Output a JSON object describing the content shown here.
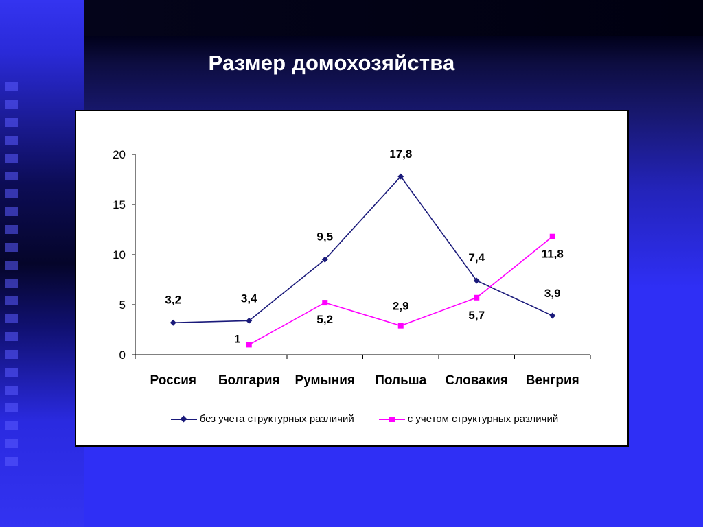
{
  "slide": {
    "title": "Размер домохозяйства"
  },
  "chart_data": {
    "type": "line",
    "categories": [
      "Россия",
      "Болгария",
      "Румыния",
      "Польша",
      "Словакия",
      "Венгрия"
    ],
    "series": [
      {
        "name": "без учета структурных различий",
        "values": [
          3.2,
          3.4,
          9.5,
          17.8,
          7.4,
          3.9
        ],
        "labels": [
          "3,2",
          "3,4",
          "9,5",
          "17,8",
          "7,4",
          "3,9"
        ],
        "color": "#1a1a7a",
        "marker": "diamond"
      },
      {
        "name": "с учетом структурных различий",
        "values": [
          null,
          1,
          5.2,
          2.9,
          5.7,
          11.8
        ],
        "labels": [
          null,
          "1",
          "5,2",
          "2,9",
          "5,7",
          "11,8"
        ],
        "color": "#ff00ff",
        "marker": "square"
      }
    ],
    "ylim": [
      0,
      20
    ],
    "yticks": [
      "0",
      "5",
      "10",
      "15",
      "20"
    ],
    "legend_position": "bottom",
    "grid": false
  }
}
